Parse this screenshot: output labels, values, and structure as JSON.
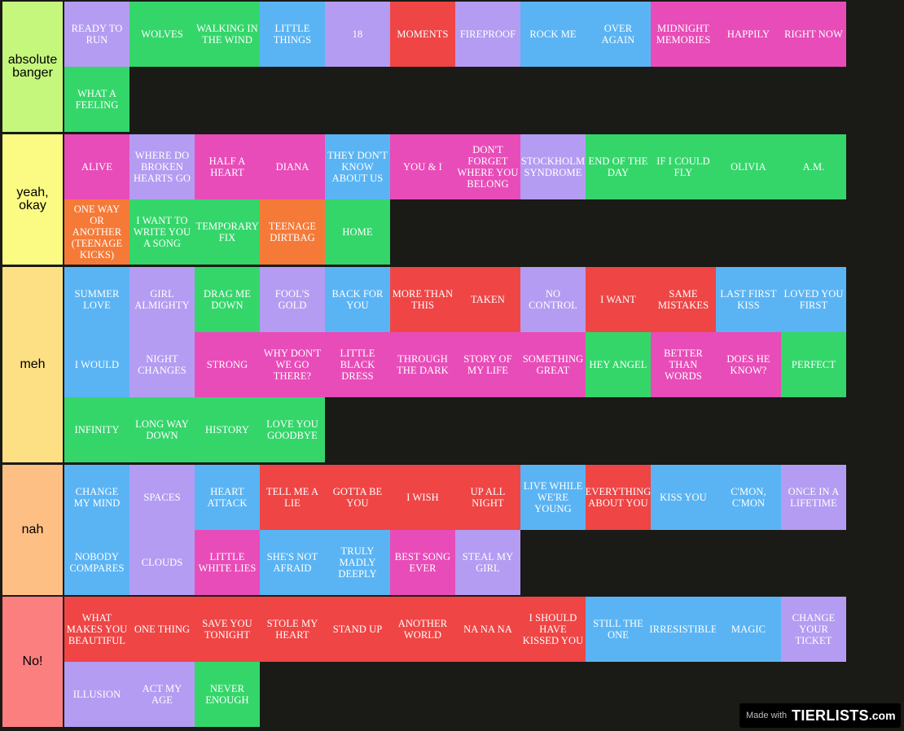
{
  "colors": {
    "purple": "#b49cf2",
    "green": "#34d66a",
    "blue": "#5ab4f4",
    "red": "#ef4545",
    "pink": "#e84cb8",
    "orange": "#f57a38"
  },
  "watermark": {
    "made_with": "Made with",
    "logo": "TIERLISTS",
    "tld": ".com"
  },
  "tiers": [
    {
      "label": "absolute banger",
      "color": "#c6f77d",
      "items": [
        {
          "text": "READY TO RUN",
          "color": "purple"
        },
        {
          "text": "WOLVES",
          "color": "green"
        },
        {
          "text": "WALKING IN THE WIND",
          "color": "green"
        },
        {
          "text": "LITTLE THINGS",
          "color": "blue"
        },
        {
          "text": "18",
          "color": "purple"
        },
        {
          "text": "MOMENTS",
          "color": "red"
        },
        {
          "text": "FIREPROOF",
          "color": "purple"
        },
        {
          "text": "ROCK ME",
          "color": "blue"
        },
        {
          "text": "OVER AGAIN",
          "color": "blue"
        },
        {
          "text": "MIDNIGHT MEMORIES",
          "color": "pink"
        },
        {
          "text": "HAPPILY",
          "color": "pink"
        },
        {
          "text": "RIGHT NOW",
          "color": "pink"
        },
        {
          "text": "WHAT A FEELING",
          "color": "green"
        }
      ]
    },
    {
      "label": "yeah, okay",
      "color": "#fbfb84",
      "items": [
        {
          "text": "ALIVE",
          "color": "pink"
        },
        {
          "text": "WHERE DO BROKEN HEARTS GO",
          "color": "purple"
        },
        {
          "text": "HALF A HEART",
          "color": "pink"
        },
        {
          "text": "DIANA",
          "color": "pink"
        },
        {
          "text": "THEY DON'T KNOW ABOUT US",
          "color": "blue"
        },
        {
          "text": "YOU & I",
          "color": "pink"
        },
        {
          "text": "DON'T FORGET WHERE YOU BELONG",
          "color": "pink"
        },
        {
          "text": "STOCKHOLM SYNDROME",
          "color": "purple"
        },
        {
          "text": "END OF THE DAY",
          "color": "green"
        },
        {
          "text": "IF I COULD FLY",
          "color": "green"
        },
        {
          "text": "OLIVIA",
          "color": "green"
        },
        {
          "text": "A.M.",
          "color": "green"
        },
        {
          "text": "ONE WAY OR ANOTHER (TEENAGE KICKS)",
          "color": "orange"
        },
        {
          "text": "I WANT TO WRITE YOU A SONG",
          "color": "green"
        },
        {
          "text": "TEMPORARY FIX",
          "color": "green"
        },
        {
          "text": "TEENAGE DIRTBAG",
          "color": "orange"
        },
        {
          "text": "HOME",
          "color": "green"
        }
      ]
    },
    {
      "label": "meh",
      "color": "#fde084",
      "items": [
        {
          "text": "SUMMER LOVE",
          "color": "blue"
        },
        {
          "text": "GIRL ALMIGHTY",
          "color": "purple"
        },
        {
          "text": "DRAG ME DOWN",
          "color": "green"
        },
        {
          "text": "FOOL'S GOLD",
          "color": "purple"
        },
        {
          "text": "BACK FOR YOU",
          "color": "blue"
        },
        {
          "text": "MORE THAN THIS",
          "color": "red"
        },
        {
          "text": "TAKEN",
          "color": "red"
        },
        {
          "text": "NO CONTROL",
          "color": "purple"
        },
        {
          "text": "I WANT",
          "color": "red"
        },
        {
          "text": "SAME MISTAKES",
          "color": "red"
        },
        {
          "text": "LAST FIRST KISS",
          "color": "blue"
        },
        {
          "text": "LOVED YOU FIRST",
          "color": "blue"
        },
        {
          "text": "I WOULD",
          "color": "blue"
        },
        {
          "text": "NIGHT CHANGES",
          "color": "purple"
        },
        {
          "text": "STRONG",
          "color": "pink"
        },
        {
          "text": "WHY DON'T WE GO THERE?",
          "color": "pink"
        },
        {
          "text": "LITTLE BLACK DRESS",
          "color": "pink"
        },
        {
          "text": "THROUGH THE DARK",
          "color": "pink"
        },
        {
          "text": "STORY OF MY LIFE",
          "color": "pink"
        },
        {
          "text": "SOMETHING GREAT",
          "color": "pink"
        },
        {
          "text": "HEY ANGEL",
          "color": "green"
        },
        {
          "text": "BETTER THAN WORDS",
          "color": "pink"
        },
        {
          "text": "DOES HE KNOW?",
          "color": "pink"
        },
        {
          "text": "PERFECT",
          "color": "green"
        },
        {
          "text": "INFINITY",
          "color": "green"
        },
        {
          "text": "LONG WAY DOWN",
          "color": "green"
        },
        {
          "text": "HISTORY",
          "color": "green"
        },
        {
          "text": "LOVE YOU GOODBYE",
          "color": "green"
        }
      ]
    },
    {
      "label": "nah",
      "color": "#fdbf84",
      "items": [
        {
          "text": "CHANGE MY MIND",
          "color": "blue"
        },
        {
          "text": "SPACES",
          "color": "purple"
        },
        {
          "text": "HEART ATTACK",
          "color": "blue"
        },
        {
          "text": "TELL ME A LIE",
          "color": "red"
        },
        {
          "text": "GOTTA BE YOU",
          "color": "red"
        },
        {
          "text": "I WISH",
          "color": "red"
        },
        {
          "text": "UP ALL NIGHT",
          "color": "red"
        },
        {
          "text": "LIVE WHILE WE'RE YOUNG",
          "color": "blue"
        },
        {
          "text": "EVERYTHING ABOUT YOU",
          "color": "red"
        },
        {
          "text": "KISS YOU",
          "color": "blue"
        },
        {
          "text": "C'MON, C'MON",
          "color": "blue"
        },
        {
          "text": "ONCE IN A LIFETIME",
          "color": "purple"
        },
        {
          "text": "NOBODY COMPARES",
          "color": "blue"
        },
        {
          "text": "CLOUDS",
          "color": "purple"
        },
        {
          "text": "LITTLE WHITE LIES",
          "color": "pink"
        },
        {
          "text": "SHE'S NOT AFRAID",
          "color": "blue"
        },
        {
          "text": "TRULY MADLY DEEPLY",
          "color": "blue"
        },
        {
          "text": "BEST SONG EVER",
          "color": "pink"
        },
        {
          "text": "STEAL MY GIRL",
          "color": "purple"
        }
      ]
    },
    {
      "label": "No!",
      "color": "#fc7f7f",
      "items": [
        {
          "text": "WHAT MAKES YOU BEAUTIFUL",
          "color": "red"
        },
        {
          "text": "ONE THING",
          "color": "red"
        },
        {
          "text": "SAVE YOU TONIGHT",
          "color": "red"
        },
        {
          "text": "STOLE MY HEART",
          "color": "red"
        },
        {
          "text": "STAND UP",
          "color": "red"
        },
        {
          "text": "ANOTHER WORLD",
          "color": "red"
        },
        {
          "text": "NA NA NA",
          "color": "red"
        },
        {
          "text": "I SHOULD HAVE KISSED YOU",
          "color": "red"
        },
        {
          "text": "STILL THE ONE",
          "color": "blue"
        },
        {
          "text": "IRRESISTIBLE",
          "color": "blue"
        },
        {
          "text": "MAGIC",
          "color": "blue"
        },
        {
          "text": "CHANGE YOUR TICKET",
          "color": "purple"
        },
        {
          "text": "ILLUSION",
          "color": "purple"
        },
        {
          "text": "ACT MY AGE",
          "color": "purple"
        },
        {
          "text": "NEVER ENOUGH",
          "color": "green"
        }
      ]
    }
  ]
}
